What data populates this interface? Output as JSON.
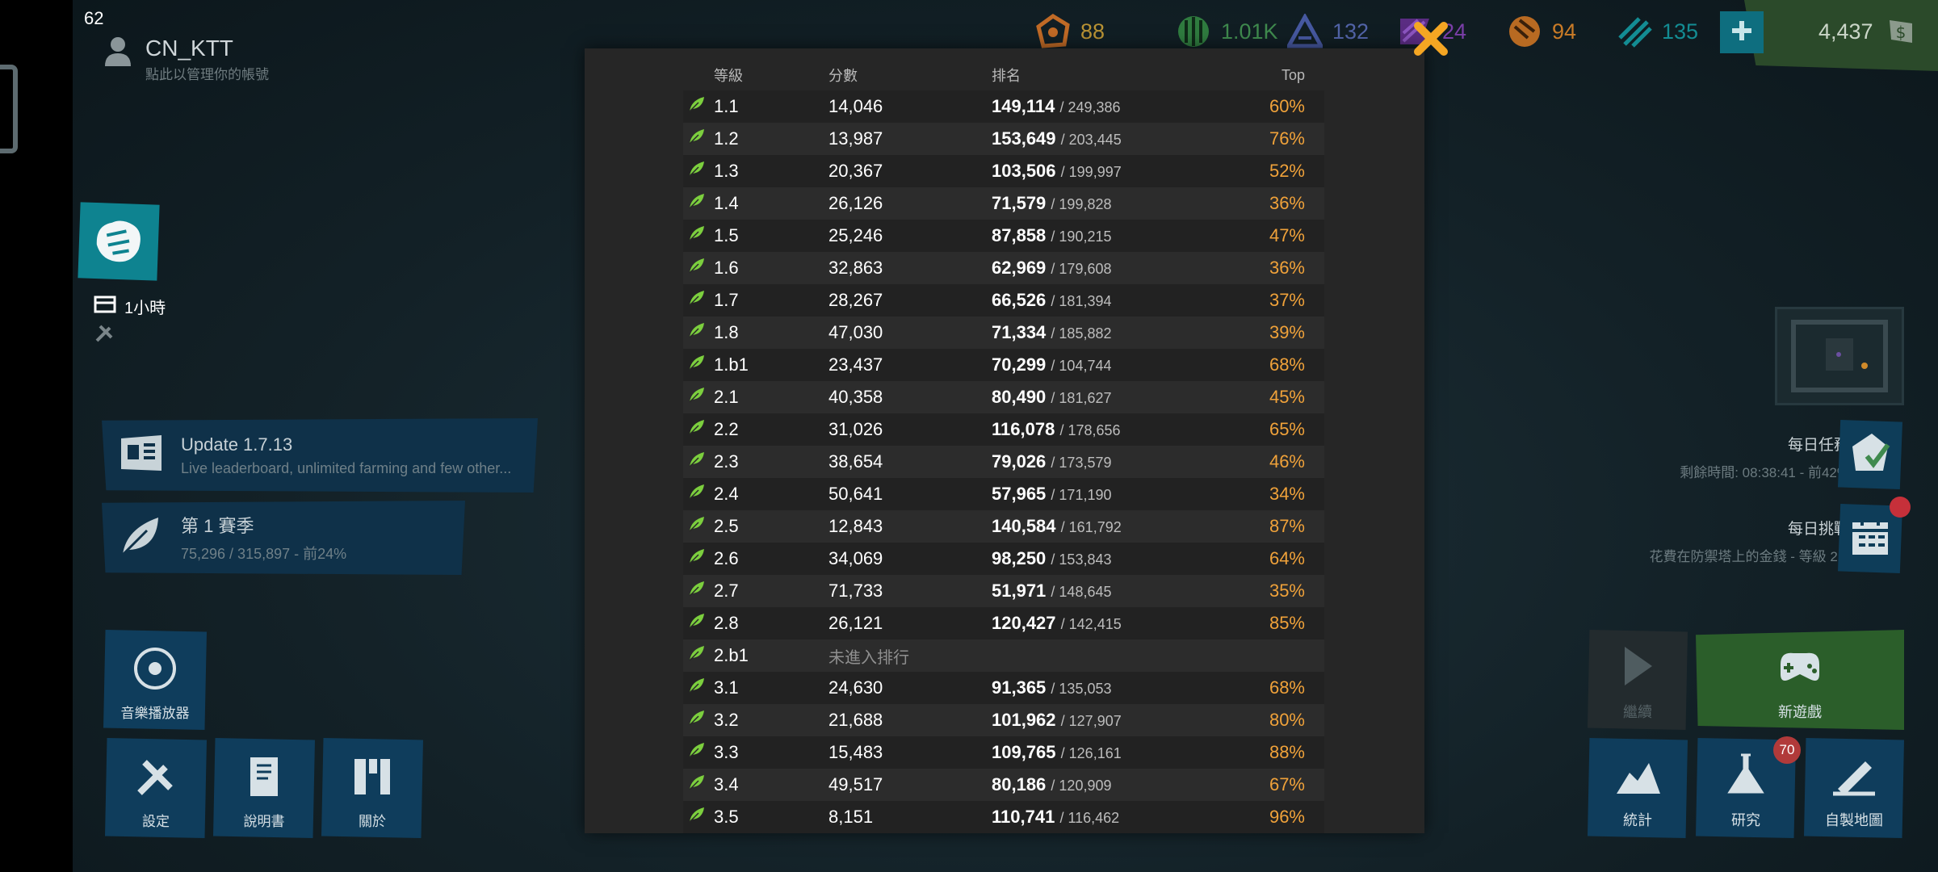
{
  "fps": "62",
  "profile": {
    "name": "CN_KTT",
    "subtitle": "點此以管理你的帳號"
  },
  "resources": [
    {
      "icon": "orange-shield-icon",
      "value": "88",
      "color": "#b99334"
    },
    {
      "icon": "green-crystal-icon",
      "value": "1.01K",
      "color": "#3f8a4e"
    },
    {
      "icon": "blue-pyramid-icon",
      "value": "132",
      "color": "#5264a8"
    },
    {
      "icon": "purple-flag-icon",
      "value": "24",
      "color": "#7a3ea8"
    },
    {
      "icon": "orange-orb-icon",
      "value": "94",
      "color": "#c97b27"
    },
    {
      "icon": "teal-diamond-icon",
      "value": "135",
      "color": "#138c93"
    }
  ],
  "gold": {
    "value": "4,437",
    "add_icon": "plus-icon"
  },
  "timer": {
    "label": "1小時"
  },
  "update_card": {
    "title": "Update 1.7.13",
    "subtitle": "Live leaderboard, unlimited farming and few other..."
  },
  "season_card": {
    "title": "第 1 賽季",
    "subtitle": "75,296 / 315,897 - 前24%"
  },
  "left_tiles": {
    "music": "音樂播放器",
    "settings": "設定",
    "manual": "說明書",
    "about": "關於"
  },
  "daily_quest": {
    "title": "每日任務",
    "subtitle": "剩餘時間: 08:38:41 - 前42%"
  },
  "daily_challenge": {
    "title": "每日挑戰",
    "subtitle": "花費在防禦塔上的金錢 - 等級 2.4"
  },
  "right_tiles": {
    "continue": "繼續",
    "new_game": "新遊戲",
    "stats": "統計",
    "research": "研究",
    "research_badge": "70",
    "map_editor": "自製地圖"
  },
  "leaderboard": {
    "headers": {
      "level": "等級",
      "score": "分數",
      "rank": "排名",
      "top": "Top"
    },
    "unranked_label": "未進入排行",
    "rows": [
      {
        "level": "1.1",
        "score": "14,046",
        "rank": "149,114",
        "total": "/ 249,386",
        "top": "60%"
      },
      {
        "level": "1.2",
        "score": "13,987",
        "rank": "153,649",
        "total": "/ 203,445",
        "top": "76%"
      },
      {
        "level": "1.3",
        "score": "20,367",
        "rank": "103,506",
        "total": "/ 199,997",
        "top": "52%"
      },
      {
        "level": "1.4",
        "score": "26,126",
        "rank": "71,579",
        "total": "/ 199,828",
        "top": "36%"
      },
      {
        "level": "1.5",
        "score": "25,246",
        "rank": "87,858",
        "total": "/ 190,215",
        "top": "47%"
      },
      {
        "level": "1.6",
        "score": "32,863",
        "rank": "62,969",
        "total": "/ 179,608",
        "top": "36%"
      },
      {
        "level": "1.7",
        "score": "28,267",
        "rank": "66,526",
        "total": "/ 181,394",
        "top": "37%"
      },
      {
        "level": "1.8",
        "score": "47,030",
        "rank": "71,334",
        "total": "/ 185,882",
        "top": "39%"
      },
      {
        "level": "1.b1",
        "score": "23,437",
        "rank": "70,299",
        "total": "/ 104,744",
        "top": "68%"
      },
      {
        "level": "2.1",
        "score": "40,358",
        "rank": "80,490",
        "total": "/ 181,627",
        "top": "45%"
      },
      {
        "level": "2.2",
        "score": "31,026",
        "rank": "116,078",
        "total": "/ 178,656",
        "top": "65%"
      },
      {
        "level": "2.3",
        "score": "38,654",
        "rank": "79,026",
        "total": "/ 173,579",
        "top": "46%"
      },
      {
        "level": "2.4",
        "score": "50,641",
        "rank": "57,965",
        "total": "/ 171,190",
        "top": "34%"
      },
      {
        "level": "2.5",
        "score": "12,843",
        "rank": "140,584",
        "total": "/ 161,792",
        "top": "87%"
      },
      {
        "level": "2.6",
        "score": "34,069",
        "rank": "98,250",
        "total": "/ 153,843",
        "top": "64%"
      },
      {
        "level": "2.7",
        "score": "71,733",
        "rank": "51,971",
        "total": "/ 148,645",
        "top": "35%"
      },
      {
        "level": "2.8",
        "score": "26,121",
        "rank": "120,427",
        "total": "/ 142,415",
        "top": "85%"
      },
      {
        "level": "2.b1",
        "score": "",
        "rank": "",
        "total": "",
        "top": "",
        "unranked": true
      },
      {
        "level": "3.1",
        "score": "24,630",
        "rank": "91,365",
        "total": "/ 135,053",
        "top": "68%"
      },
      {
        "level": "3.2",
        "score": "21,688",
        "rank": "101,962",
        "total": "/ 127,907",
        "top": "80%"
      },
      {
        "level": "3.3",
        "score": "15,483",
        "rank": "109,765",
        "total": "/ 126,161",
        "top": "88%"
      },
      {
        "level": "3.4",
        "score": "49,517",
        "rank": "80,186",
        "total": "/ 120,909",
        "top": "67%"
      },
      {
        "level": "3.5",
        "score": "8,151",
        "rank": "110,741",
        "total": "/ 116,462",
        "top": "96%"
      }
    ]
  },
  "colors": {
    "accent_orange": "#f0a23a",
    "close_x": "#f5a623",
    "leaf_green": "#7ccf3e"
  }
}
